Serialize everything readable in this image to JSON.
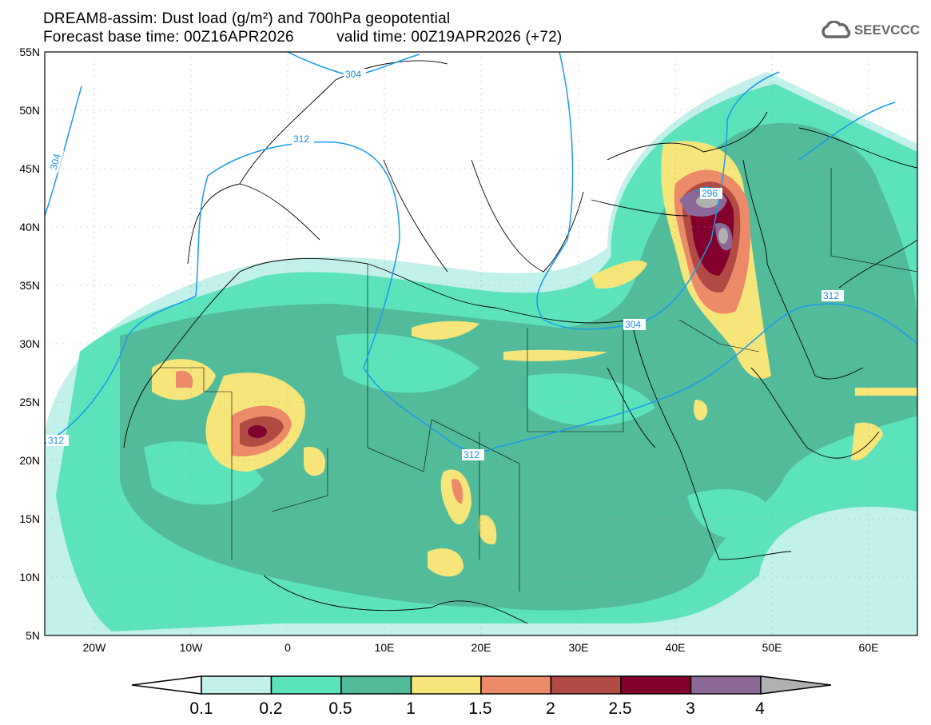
{
  "header": {
    "title": "DREAM8-assim: Dust load (g/m²) and 700hPa geopotential",
    "base_time": "Forecast base time: 00Z16APR2026",
    "valid_time": "valid time: 00Z19APR2026 (+72)"
  },
  "logo": {
    "text": "SEEVCCC",
    "icon": "cloud-icon"
  },
  "map": {
    "lat_labels": [
      "55N",
      "50N",
      "45N",
      "40N",
      "35N",
      "30N",
      "25N",
      "20N",
      "15N",
      "10N",
      "5N"
    ],
    "lon_labels": [
      "20W",
      "10W",
      "0",
      "10E",
      "20E",
      "30E",
      "40E",
      "50E",
      "60E"
    ],
    "contour_labels": [
      "304",
      "304",
      "312",
      "312",
      "312",
      "296",
      "304",
      "312"
    ]
  },
  "colorbar": {
    "labels": [
      "0.1",
      "0.2",
      "0.5",
      "1",
      "1.5",
      "2",
      "2.5",
      "3",
      "4"
    ],
    "colors": [
      "#ffffff",
      "#c2f0ea",
      "#5de3bc",
      "#52bc9a",
      "#f6e67a",
      "#ec8a6a",
      "#b04a42",
      "#84002c",
      "#8c6898",
      "#b0b0b0"
    ]
  }
}
